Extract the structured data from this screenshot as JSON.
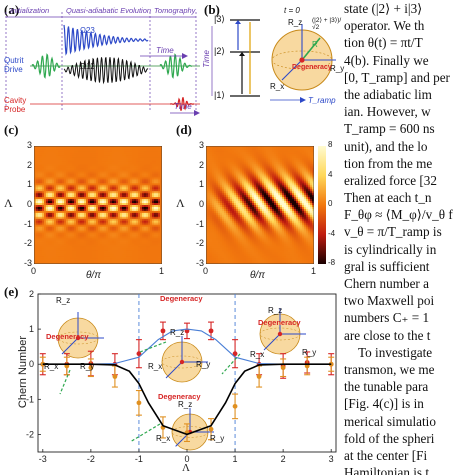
{
  "panel_labels": {
    "a": "(a)",
    "b": "(b)",
    "c": "(c)",
    "d": "(d)",
    "e": "(e)"
  },
  "panel_a": {
    "phases": [
      "Initialization",
      "Quasi-adiabatic Evolution",
      "Tomography"
    ],
    "labels": {
      "drive": "Qutrit\nDrive",
      "probe": "Cavity\nProbe",
      "omega23": "Ω23",
      "omega12": "Ω12",
      "time": "Time"
    }
  },
  "panel_b": {
    "levels": [
      "|3⟩",
      "|2⟩",
      "|1⟩"
    ],
    "t0": "t = 0",
    "R_z": "R_z",
    "R_y": "R_y",
    "R_x": "R_x",
    "R": "R",
    "state_label": "(|2⟩ + |3⟩)/√2",
    "degeneracy": "Degeneracy",
    "time": "Time",
    "Tramp": "T_ramp"
  },
  "heatmap_axes": {
    "ylabel": "Λ",
    "xlabel": "θ/π",
    "yticks": [
      "3",
      "2",
      "1",
      "0",
      "-1",
      "-2",
      "-3"
    ],
    "xticks": [
      "0",
      "1"
    ]
  },
  "colorbar": {
    "ticks": [
      "8",
      "4",
      "0",
      "-4",
      "-8"
    ]
  },
  "chart_data": {
    "type": "scatter",
    "title": "",
    "xlabel": "Λ",
    "ylabel": "Chern Number",
    "xlim": [
      -3.1,
      3.1
    ],
    "ylim": [
      -2.5,
      2.0
    ],
    "xticks": [
      -3,
      -2,
      -1,
      0,
      1,
      2,
      3
    ],
    "yticks": [
      -2,
      -1,
      0,
      1,
      2
    ],
    "vlines": [
      -1,
      1
    ],
    "series": [
      {
        "name": "",
        "color": "#d62626",
        "x": [
          -3.0,
          -2.5,
          -2.0,
          -1.5,
          -1.0,
          -0.5,
          0.0,
          0.5,
          1.0,
          1.5,
          2.0,
          2.5,
          3.0
        ],
        "values": [
          0.0,
          0.0,
          0.02,
          0.0,
          0.3,
          0.95,
          0.95,
          0.95,
          0.3,
          0.0,
          -0.05,
          0.05,
          0.0
        ],
        "err": [
          0.3,
          0.3,
          0.35,
          0.3,
          0.4,
          0.25,
          0.22,
          0.25,
          0.4,
          0.3,
          0.35,
          0.3,
          0.3
        ]
      },
      {
        "name": "",
        "color": "#e09020",
        "x": [
          -3.0,
          -2.5,
          -2.0,
          -1.5,
          -1.0,
          -0.5,
          0.0,
          0.5,
          1.0,
          1.5,
          2.0,
          2.5,
          3.0
        ],
        "values": [
          0.0,
          -0.05,
          -0.1,
          -0.35,
          -1.1,
          -1.8,
          -1.95,
          -1.85,
          -1.2,
          -0.35,
          -0.1,
          -0.05,
          0.0
        ],
        "err": [
          0.2,
          0.25,
          0.25,
          0.3,
          0.35,
          0.3,
          0.25,
          0.3,
          0.35,
          0.3,
          0.25,
          0.25,
          0.2
        ]
      },
      {
        "name": "",
        "color": "#4a7fd6",
        "x": [
          -3.0,
          -2.0,
          -1.5,
          -1.0,
          -0.6,
          -0.3,
          0.0,
          0.3,
          0.6,
          1.0,
          1.5,
          2.0,
          3.0
        ],
        "values": [
          0.0,
          0.0,
          0.02,
          0.2,
          0.7,
          0.95,
          1.0,
          0.95,
          0.7,
          0.2,
          0.02,
          0.0,
          0.0
        ]
      },
      {
        "name": "",
        "color": "#000000",
        "x": [
          -3.0,
          -2.0,
          -1.5,
          -1.2,
          -1.0,
          -0.8,
          -0.5,
          0.0,
          0.5,
          0.8,
          1.0,
          1.2,
          1.5,
          2.0,
          3.0
        ],
        "values": [
          0.0,
          0.0,
          -0.02,
          -0.2,
          -0.55,
          -1.1,
          -1.75,
          -2.0,
          -1.75,
          -1.1,
          -0.55,
          -0.2,
          -0.02,
          0.0,
          0.0
        ]
      }
    ],
    "annotations": [
      "Degeneracy",
      "Degeneracy",
      "Degeneracy",
      "Degeneracy"
    ]
  },
  "inset_labels": {
    "Rz": "R_z",
    "Rx": "R_x",
    "Ry": "R_y",
    "R": "R"
  },
  "body_text": [
    "state (|2⟩ + i|3⟩",
    "operator. We th",
    "tion θ(t) = πt/T",
    "4(b). Finally we",
    "[0, T_ramp] and per",
    "the adiabatic lim",
    "ian. However, w",
    "T_ramp = 600 ns",
    "unit), and the lo",
    "tion from the me",
    "eralized force [32",
    "Then at each t_n",
    "F_θφ ≈ ⟨M_φ⟩/v_θ f",
    "v_θ = π/T_ramp is",
    "is cylindrically in",
    "gral is sufficient",
    "Chern number a",
    "two Maxwell poi",
    "numbers C₊ = 1",
    "are close to the t",
    "To investigate",
    "transmon, we me",
    "the tunable para",
    "[Fig. 4(c)] is in",
    "merical simulatio",
    "fold of the spheri",
    "at the center [Fi",
    "Hamiltonian is t"
  ]
}
